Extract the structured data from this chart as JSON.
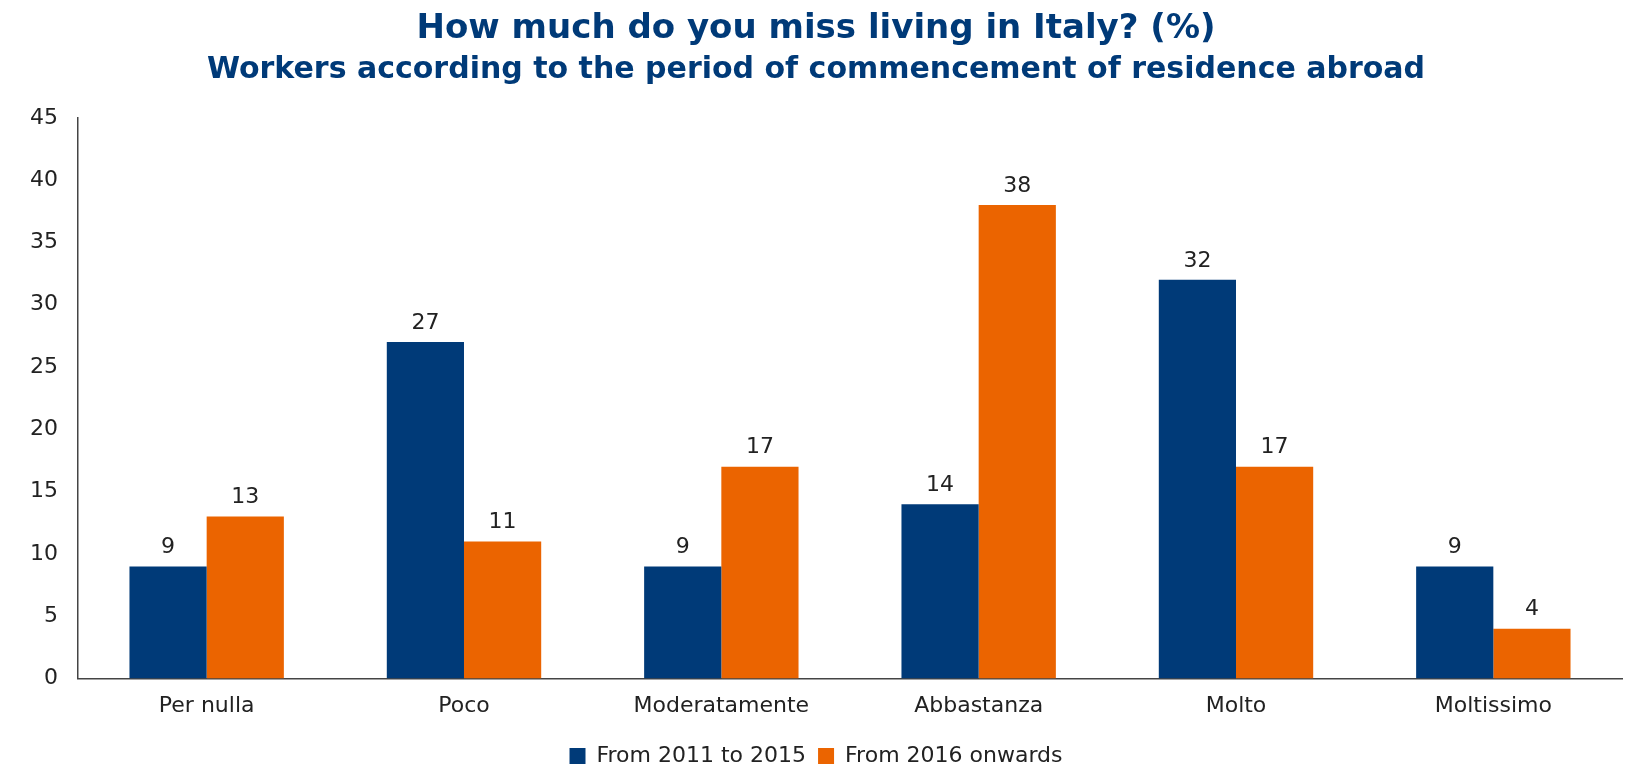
{
  "chart_data": {
    "type": "bar",
    "title": "How much do you miss living in Italy? (%)",
    "subtitle": "Workers according to the period of commencement of residence abroad",
    "categories": [
      "Per nulla",
      "Poco",
      "Moderatamente",
      "Abbastanza",
      "Molto",
      "Moltissimo"
    ],
    "series": [
      {
        "name": "From 2011 to 2015",
        "color": "#003a78",
        "values": [
          9,
          27,
          9,
          14,
          32,
          9
        ]
      },
      {
        "name": "From 2016 onwards",
        "color": "#eb6400",
        "values": [
          13,
          11,
          17,
          38,
          17,
          4
        ]
      }
    ],
    "ylim": [
      0,
      45
    ],
    "yticks": [
      0,
      5,
      10,
      15,
      20,
      25,
      30,
      35,
      40,
      45
    ],
    "grid": false,
    "legend": "bottom",
    "data_labels": true
  }
}
